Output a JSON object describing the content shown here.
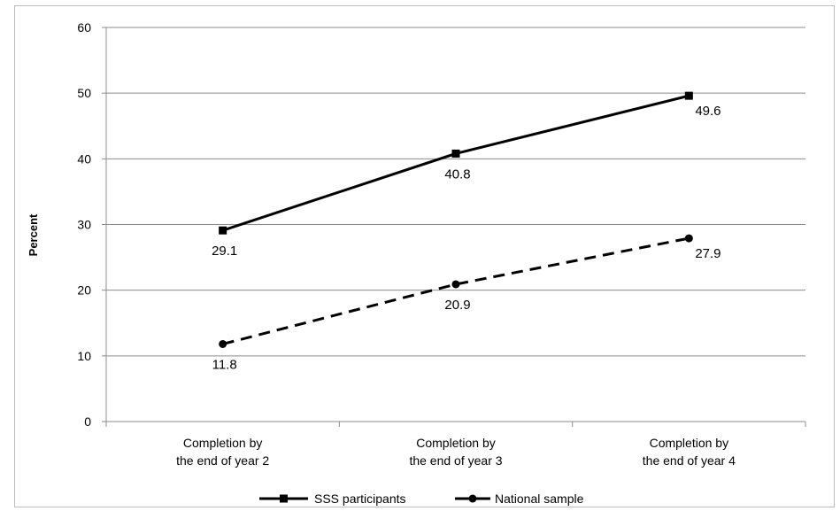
{
  "chart_data": {
    "type": "line",
    "title": "",
    "xlabel": "",
    "ylabel": "Percent",
    "ylim": [
      0,
      60
    ],
    "yticks": [
      0,
      10,
      20,
      30,
      40,
      50,
      60
    ],
    "categories": [
      [
        "Completion by",
        "the end of year 2"
      ],
      [
        "Completion by",
        "the end of year 3"
      ],
      [
        "Completion by",
        "the end of year 4"
      ]
    ],
    "series": [
      {
        "name": "SSS participants",
        "values": [
          29.1,
          40.8,
          49.6
        ],
        "labels": [
          "29.1",
          "40.8",
          "49.6"
        ],
        "line_style": "solid",
        "marker": "square",
        "color": "#000000"
      },
      {
        "name": "National sample",
        "values": [
          11.8,
          20.9,
          27.9
        ],
        "labels": [
          "11.8",
          "20.9",
          "27.9"
        ],
        "line_style": "dashed",
        "marker": "circle",
        "color": "#000000"
      }
    ],
    "grid": true,
    "legend_position": "bottom"
  }
}
